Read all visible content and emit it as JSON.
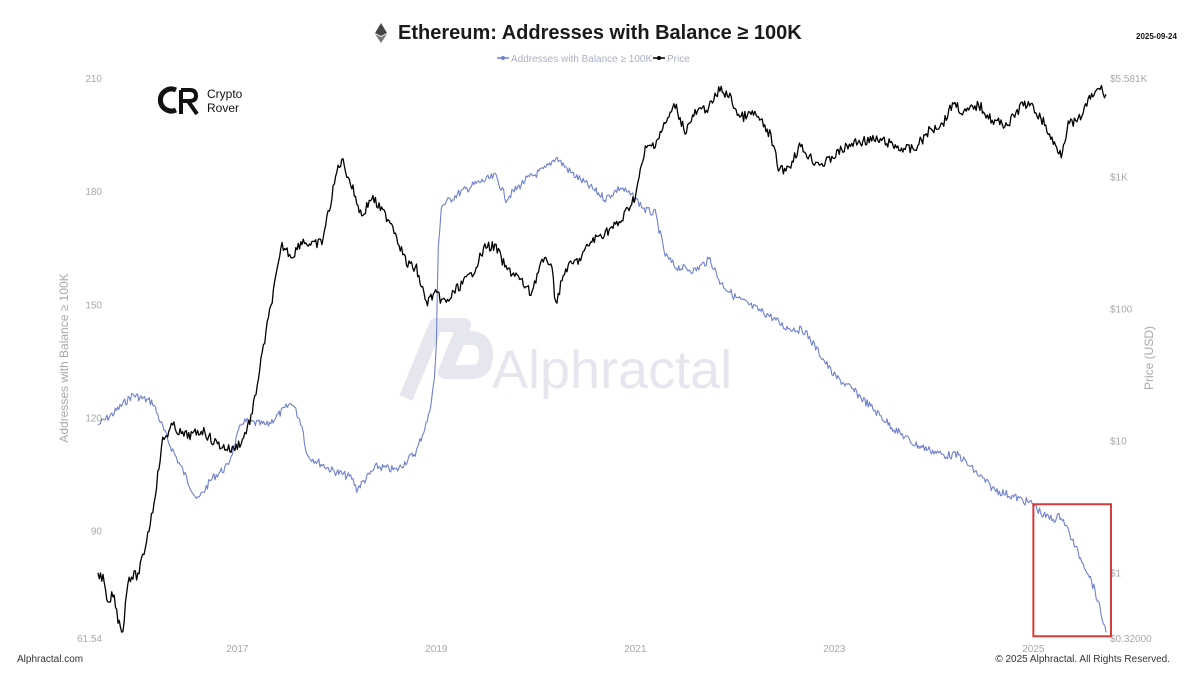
{
  "header": {
    "title": "Ethereum: Addresses with Balance ≥ 100K",
    "date": "2025-09-24"
  },
  "brand": {
    "logo_line1": "Crypto",
    "logo_line2": "Rover",
    "watermark": "Alphractal"
  },
  "footer": {
    "left": "Alphractal.com",
    "right": "© 2025 Alphractal. All Rights Reserved."
  },
  "colors": {
    "addresses": "#6f80cf",
    "price": "#000000",
    "highlight": "#d93a3a"
  },
  "chart_data": {
    "type": "line",
    "title": "Ethereum: Addresses with Balance ≥ 100K",
    "legend_position": "top-center",
    "grid": false,
    "x_axis": {
      "range": [
        2015.7,
        2025.73
      ],
      "ticks": [
        "2017",
        "2019",
        "2021",
        "2023",
        "2025"
      ]
    },
    "y_left": {
      "label": "Addresses with Balance ≥ 100K",
      "range": [
        61.54,
        210
      ],
      "ticks": [
        "61.54",
        "90",
        "120",
        "150",
        "180",
        "210"
      ]
    },
    "y_right": {
      "label": "Price (USD)",
      "scale": "log",
      "range": [
        0.32,
        5581
      ],
      "ticks": [
        "$0.32000",
        "$1",
        "$10",
        "$100",
        "$1K",
        "$5.581K"
      ]
    },
    "annotations": [
      {
        "type": "box",
        "label": "",
        "x_range": [
          2025.0,
          2025.73
        ],
        "y_range": [
          62,
          97
        ]
      }
    ],
    "series": [
      {
        "name": "Addresses with Balance ≥ 100K",
        "axis": "left",
        "points": [
          [
            2015.6,
            118
          ],
          [
            2015.75,
            121
          ],
          [
            2015.95,
            126
          ],
          [
            2016.15,
            124
          ],
          [
            2016.3,
            114
          ],
          [
            2016.45,
            106
          ],
          [
            2016.6,
            98
          ],
          [
            2016.75,
            104
          ],
          [
            2016.9,
            107
          ],
          [
            2017.05,
            119
          ],
          [
            2017.3,
            118
          ],
          [
            2017.55,
            124
          ],
          [
            2017.65,
            118
          ],
          [
            2017.7,
            110
          ],
          [
            2017.95,
            106
          ],
          [
            2018.15,
            104
          ],
          [
            2018.2,
            101
          ],
          [
            2018.4,
            107
          ],
          [
            2018.6,
            106
          ],
          [
            2018.8,
            111
          ],
          [
            2018.92,
            120
          ],
          [
            2018.98,
            130
          ],
          [
            2019.0,
            140
          ],
          [
            2019.02,
            165
          ],
          [
            2019.05,
            176
          ],
          [
            2019.2,
            179
          ],
          [
            2019.4,
            182
          ],
          [
            2019.6,
            184
          ],
          [
            2019.7,
            178
          ],
          [
            2019.9,
            183
          ],
          [
            2020.1,
            186
          ],
          [
            2020.2,
            189
          ],
          [
            2020.35,
            185
          ],
          [
            2020.5,
            182
          ],
          [
            2020.7,
            178
          ],
          [
            2020.85,
            181
          ],
          [
            2021.0,
            178
          ],
          [
            2021.1,
            175
          ],
          [
            2021.2,
            174
          ],
          [
            2021.3,
            163
          ],
          [
            2021.4,
            160
          ],
          [
            2021.6,
            159
          ],
          [
            2021.75,
            162
          ],
          [
            2021.85,
            156
          ],
          [
            2022.0,
            152
          ],
          [
            2022.2,
            149
          ],
          [
            2022.35,
            147
          ],
          [
            2022.5,
            144
          ],
          [
            2022.7,
            143
          ],
          [
            2022.85,
            137
          ],
          [
            2023.0,
            131
          ],
          [
            2023.2,
            127
          ],
          [
            2023.4,
            122
          ],
          [
            2023.6,
            117
          ],
          [
            2023.8,
            113
          ],
          [
            2024.0,
            111
          ],
          [
            2024.1,
            110
          ],
          [
            2024.25,
            110
          ],
          [
            2024.4,
            106
          ],
          [
            2024.6,
            101
          ],
          [
            2024.8,
            99
          ],
          [
            2025.0,
            97
          ],
          [
            2025.1,
            94
          ],
          [
            2025.2,
            93
          ],
          [
            2025.28,
            94
          ],
          [
            2025.35,
            90
          ],
          [
            2025.45,
            84
          ],
          [
            2025.55,
            79
          ],
          [
            2025.62,
            74
          ],
          [
            2025.68,
            68
          ],
          [
            2025.73,
            63
          ]
        ]
      },
      {
        "name": "Price",
        "axis": "right",
        "points": [
          [
            2015.6,
            1.0
          ],
          [
            2015.65,
            0.9
          ],
          [
            2015.7,
            0.55
          ],
          [
            2015.75,
            0.7
          ],
          [
            2015.8,
            0.45
          ],
          [
            2015.85,
            0.36
          ],
          [
            2015.9,
            0.9
          ],
          [
            2015.95,
            0.95
          ],
          [
            2016.0,
            0.95
          ],
          [
            2016.05,
            1.3
          ],
          [
            2016.15,
            3.0
          ],
          [
            2016.25,
            10
          ],
          [
            2016.35,
            13
          ],
          [
            2016.45,
            11
          ],
          [
            2016.55,
            11
          ],
          [
            2016.65,
            12
          ],
          [
            2016.75,
            10
          ],
          [
            2016.85,
            9
          ],
          [
            2016.95,
            8.5
          ],
          [
            2017.05,
            10
          ],
          [
            2017.15,
            16
          ],
          [
            2017.25,
            45
          ],
          [
            2017.35,
            120
          ],
          [
            2017.45,
            300
          ],
          [
            2017.55,
            250
          ],
          [
            2017.65,
            330
          ],
          [
            2017.75,
            300
          ],
          [
            2017.85,
            320
          ],
          [
            2017.95,
            700
          ],
          [
            2018.0,
            1100
          ],
          [
            2018.05,
            1350
          ],
          [
            2018.15,
            850
          ],
          [
            2018.25,
            500
          ],
          [
            2018.35,
            700
          ],
          [
            2018.45,
            550
          ],
          [
            2018.55,
            450
          ],
          [
            2018.7,
            220
          ],
          [
            2018.8,
            200
          ],
          [
            2018.9,
            110
          ],
          [
            2018.98,
            130
          ],
          [
            2019.1,
            110
          ],
          [
            2019.2,
            140
          ],
          [
            2019.35,
            180
          ],
          [
            2019.5,
            300
          ],
          [
            2019.6,
            290
          ],
          [
            2019.7,
            200
          ],
          [
            2019.8,
            180
          ],
          [
            2019.95,
            130
          ],
          [
            2020.05,
            220
          ],
          [
            2020.15,
            230
          ],
          [
            2020.2,
            110
          ],
          [
            2020.3,
            200
          ],
          [
            2020.45,
            240
          ],
          [
            2020.55,
            320
          ],
          [
            2020.7,
            380
          ],
          [
            2020.85,
            450
          ],
          [
            2021.0,
            720
          ],
          [
            2021.1,
            1600
          ],
          [
            2021.2,
            1800
          ],
          [
            2021.3,
            2500
          ],
          [
            2021.4,
            3500
          ],
          [
            2021.5,
            2200
          ],
          [
            2021.6,
            3000
          ],
          [
            2021.75,
            3400
          ],
          [
            2021.85,
            4600
          ],
          [
            2021.95,
            4000
          ],
          [
            2022.05,
            2800
          ],
          [
            2022.2,
            3000
          ],
          [
            2022.35,
            2100
          ],
          [
            2022.45,
            1100
          ],
          [
            2022.55,
            1200
          ],
          [
            2022.65,
            1700
          ],
          [
            2022.8,
            1300
          ],
          [
            2022.9,
            1250
          ],
          [
            2023.05,
            1550
          ],
          [
            2023.2,
            1800
          ],
          [
            2023.35,
            1900
          ],
          [
            2023.5,
            1850
          ],
          [
            2023.65,
            1650
          ],
          [
            2023.8,
            1600
          ],
          [
            2023.95,
            2200
          ],
          [
            2024.1,
            2600
          ],
          [
            2024.2,
            3700
          ],
          [
            2024.3,
            3000
          ],
          [
            2024.45,
            3500
          ],
          [
            2024.6,
            2600
          ],
          [
            2024.75,
            2500
          ],
          [
            2024.9,
            3600
          ],
          [
            2025.0,
            3300
          ],
          [
            2025.1,
            2600
          ],
          [
            2025.2,
            1800
          ],
          [
            2025.28,
            1500
          ],
          [
            2025.35,
            2500
          ],
          [
            2025.45,
            2600
          ],
          [
            2025.55,
            3700
          ],
          [
            2025.62,
            4300
          ],
          [
            2025.67,
            4700
          ],
          [
            2025.7,
            4400
          ],
          [
            2025.73,
            4200
          ]
        ]
      }
    ]
  }
}
